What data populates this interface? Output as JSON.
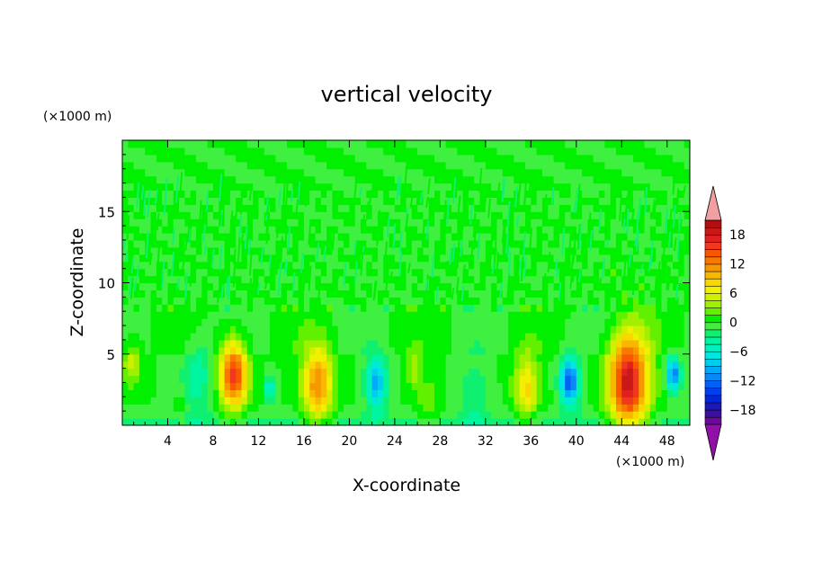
{
  "chart_data": {
    "type": "heatmap",
    "title": "vertical velocity",
    "xlabel": "X-coordinate",
    "ylabel": "Z-coordinate",
    "x_unit": "(×1000 m)",
    "y_unit": "(×1000 m)",
    "xlim": [
      0,
      50
    ],
    "ylim": [
      0,
      20
    ],
    "x_ticks": [
      4,
      8,
      12,
      16,
      20,
      24,
      28,
      32,
      36,
      40,
      44,
      48
    ],
    "y_ticks": [
      5,
      10,
      15
    ],
    "colorbar": {
      "ticks": [
        18,
        12,
        6,
        0,
        -6,
        -12,
        -18
      ],
      "range": [
        -21,
        21
      ],
      "levels": [
        -21,
        -19.5,
        -18,
        -16.5,
        -15,
        -13.5,
        -12,
        -10.5,
        -9,
        -7.5,
        -6,
        -4.5,
        -3,
        -1.5,
        0,
        1.5,
        3,
        4.5,
        6,
        7.5,
        9,
        10.5,
        12,
        13.5,
        15,
        16.5,
        18,
        19.5,
        21
      ],
      "colors": [
        "#6a0a9a",
        "#3a10a0",
        "#1a18b8",
        "#0028d8",
        "#0040f0",
        "#0060f8",
        "#0a88f8",
        "#00aaf8",
        "#00ccf0",
        "#00e6e0",
        "#00f0c0",
        "#00f5a0",
        "#10f070",
        "#40f040",
        "#00f000",
        "#60f000",
        "#a0f000",
        "#d0f000",
        "#f0f000",
        "#f8d800",
        "#f8b800",
        "#f89800",
        "#f87800",
        "#f85800",
        "#f03820",
        "#e02020",
        "#c81818",
        "#b01010"
      ],
      "over_color": "#f0a0a0",
      "under_color": "#9010a8"
    },
    "features": [
      {
        "x": 9.8,
        "z": 3.6,
        "w": 1.2,
        "v": 16
      },
      {
        "x": 17.2,
        "z": 2.9,
        "w": 1.3,
        "v": 12
      },
      {
        "x": 44.6,
        "z": 3.1,
        "w": 1.7,
        "v": 19
      },
      {
        "x": 35.6,
        "z": 2.7,
        "w": 1.1,
        "v": 8
      },
      {
        "x": 0.8,
        "z": 4.4,
        "w": 0.8,
        "v": 5
      },
      {
        "x": 25.8,
        "z": 4.0,
        "w": 0.7,
        "v": 4
      },
      {
        "x": 27.0,
        "z": 1.4,
        "w": 0.9,
        "v": 3
      },
      {
        "x": 5.2,
        "z": 1.0,
        "w": 0.5,
        "v": 2
      },
      {
        "x": 13.0,
        "z": 2.6,
        "w": 0.4,
        "v": -7
      },
      {
        "x": 22.4,
        "z": 3.0,
        "w": 0.9,
        "v": -10
      },
      {
        "x": 39.4,
        "z": 3.1,
        "w": 0.8,
        "v": -14
      },
      {
        "x": 48.6,
        "z": 3.6,
        "w": 0.6,
        "v": -12
      },
      {
        "x": 6.6,
        "z": 3.4,
        "w": 1.4,
        "v": -4
      },
      {
        "x": 31.0,
        "z": 2.2,
        "w": 1.2,
        "v": -3
      }
    ]
  }
}
